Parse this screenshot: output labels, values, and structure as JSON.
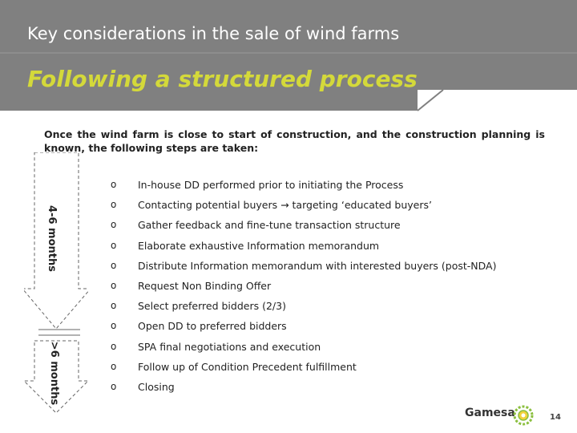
{
  "header": {
    "title": "Key considerations in the sale of wind farms",
    "subtitle": "Following a structured process"
  },
  "intro": "Once the wind farm is close to start of construction, and the construction planning is known, the following steps are taken:",
  "timeline": {
    "phase1_label": "4-6 months",
    "phase2_label": ">6 months"
  },
  "steps": [
    {
      "bullet": "o",
      "text": "In-house DD performed prior to initiating the Process"
    },
    {
      "bullet": "o",
      "text": "Contacting potential buyers → targeting ‘educated buyers’"
    },
    {
      "bullet": "o",
      "text": "Gather feedback and fine-tune transaction structure"
    },
    {
      "bullet": "o",
      "text": "Elaborate exhaustive Information memorandum"
    },
    {
      "bullet": "o",
      "text": "Distribute Information memorandum with interested buyers (post-NDA)"
    },
    {
      "bullet": "o",
      "text": "Request Non Binding Offer"
    },
    {
      "bullet": "o",
      "text": "Select preferred bidders (2/3)"
    },
    {
      "bullet": "o",
      "text": "Open DD to preferred bidders"
    },
    {
      "bullet": "o",
      "text": "SPA final negotiations and execution"
    },
    {
      "bullet": "o",
      "text": "Follow up of Condition Precedent fulfillment"
    },
    {
      "bullet": "o",
      "text": "Closing"
    }
  ],
  "footer": {
    "logo_text": "Gamesa",
    "page_number": "14"
  },
  "colors": {
    "header_bg": "#808080",
    "subtitle": "#d4d93a",
    "logo_accent": "#8bbf3f"
  }
}
